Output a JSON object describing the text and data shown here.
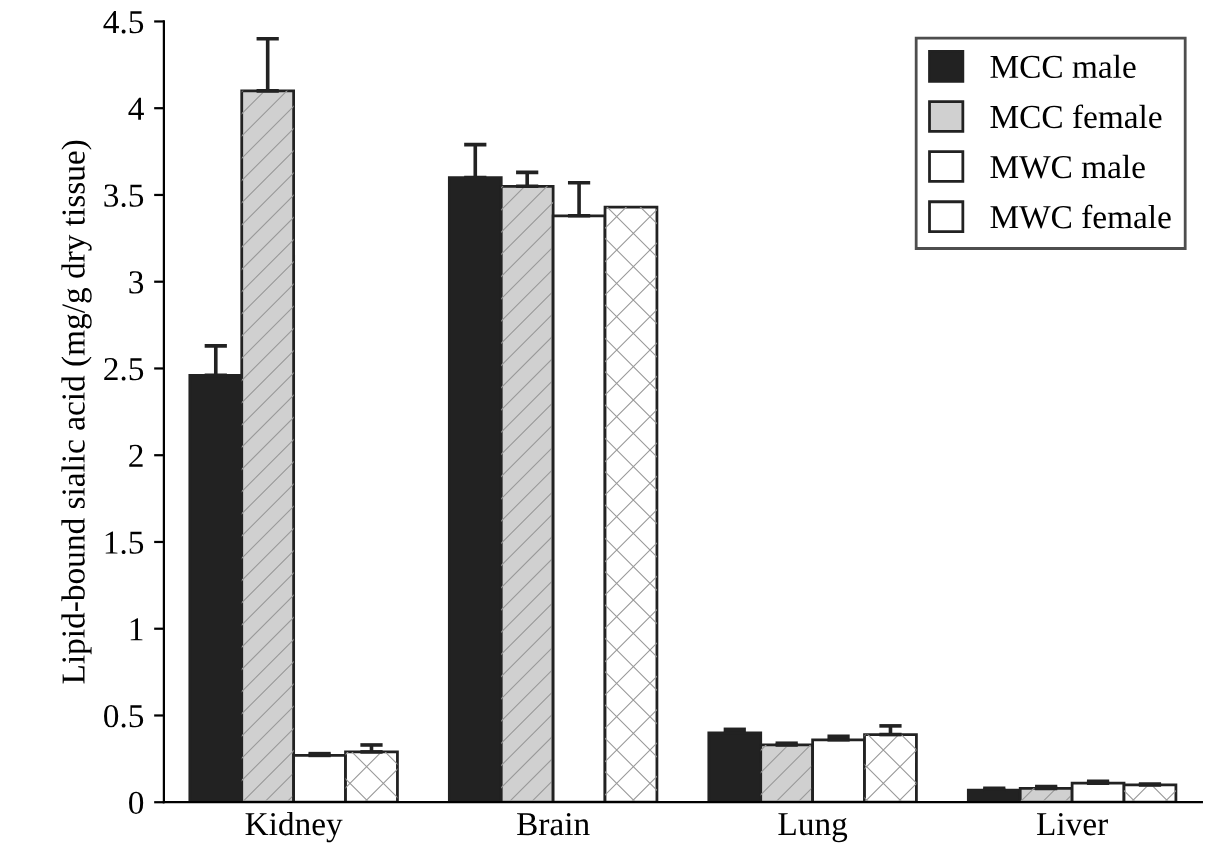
{
  "chart_data": {
    "type": "bar",
    "ylabel": "Lipid-bound sialic acid (mg/g dry tissue)",
    "categories": [
      "Kidney",
      "Brain",
      "Lung",
      "Liver"
    ],
    "series": [
      {
        "name": "MCC male",
        "color": "#222222",
        "values": [
          2.46,
          3.6,
          0.4,
          0.07
        ],
        "errors": [
          0.17,
          0.19,
          0.02,
          0.01
        ]
      },
      {
        "name": "MCC female",
        "color": "#d0d0d0",
        "values": [
          4.1,
          3.55,
          0.33,
          0.08
        ],
        "errors": [
          0.3,
          0.08,
          0.01,
          0.01
        ]
      },
      {
        "name": "MWC male",
        "color": "#ffffff",
        "values": [
          0.27,
          3.38,
          0.36,
          0.11
        ],
        "errors": [
          0.01,
          0.19,
          0.02,
          0.01
        ]
      },
      {
        "name": "MWC female",
        "color": "#ffffff",
        "values": [
          0.29,
          3.43,
          0.39,
          0.1
        ],
        "errors": [
          0.04,
          null,
          0.05,
          0.005
        ]
      }
    ],
    "ylim": [
      0,
      4.5
    ],
    "yticks": [
      0,
      0.5,
      1,
      1.5,
      2,
      2.5,
      3,
      3.5,
      4,
      4.5
    ],
    "grid": false,
    "legend": "top right"
  }
}
